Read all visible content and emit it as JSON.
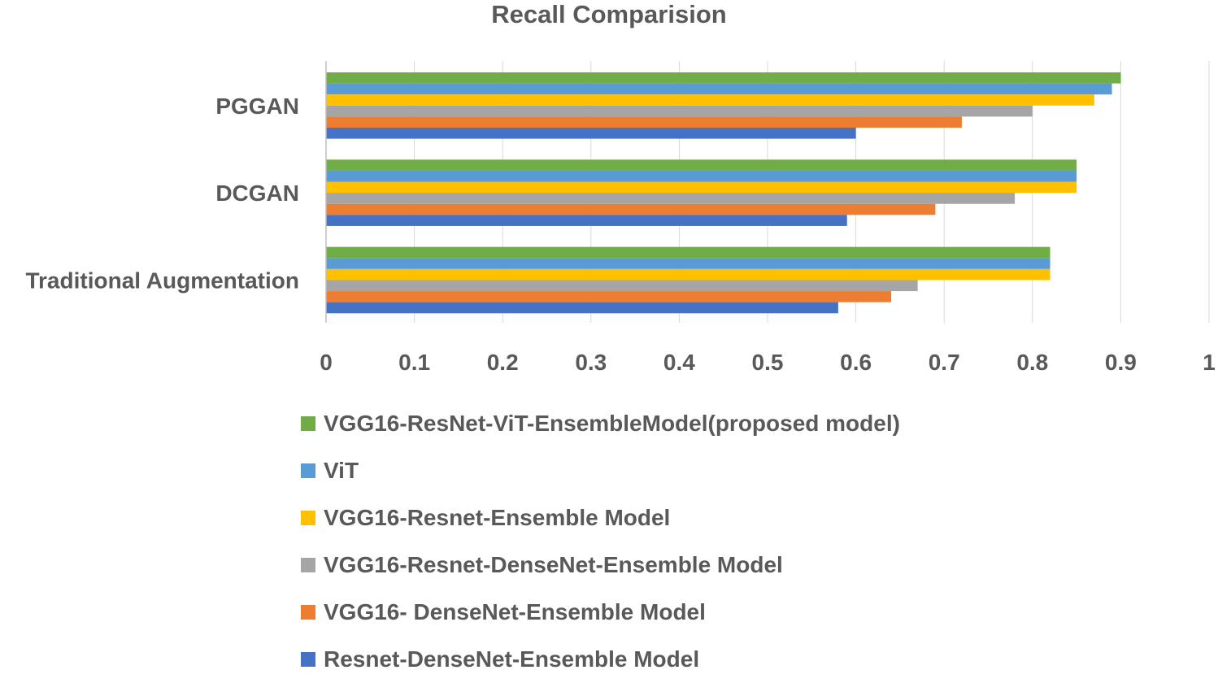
{
  "chart_data": {
    "type": "bar",
    "orientation": "horizontal",
    "title": "Recall Comparision",
    "xlabel": "",
    "ylabel": "",
    "xlim": [
      0,
      1
    ],
    "x_ticks": [
      "0",
      "0.1",
      "0.2",
      "0.3",
      "0.4",
      "0.5",
      "0.6",
      "0.7",
      "0.8",
      "0.9",
      "1"
    ],
    "grid": "vertical",
    "legend_position": "bottom",
    "categories": [
      "PGGAN",
      "DCGAN",
      "Traditional Augmentation"
    ],
    "series": [
      {
        "name": "VGG16-ResNet-ViT-EnsembleModel(proposed model)",
        "color": "#70AD47",
        "values": [
          0.9,
          0.85,
          0.82
        ]
      },
      {
        "name": "ViT",
        "color": "#5B9BD5",
        "values": [
          0.89,
          0.85,
          0.82
        ]
      },
      {
        "name": "VGG16-Resnet-Ensemble Model",
        "color": "#FFC000",
        "values": [
          0.87,
          0.85,
          0.82
        ]
      },
      {
        "name": "VGG16-Resnet-DenseNet-Ensemble Model",
        "color": "#A5A5A5",
        "values": [
          0.8,
          0.78,
          0.67
        ]
      },
      {
        "name": "VGG16- DenseNet-Ensemble Model",
        "color": "#ED7D31",
        "values": [
          0.72,
          0.69,
          0.64
        ]
      },
      {
        "name": "Resnet-DenseNet-Ensemble Model",
        "color": "#4472C4",
        "values": [
          0.6,
          0.59,
          0.58
        ]
      }
    ]
  }
}
